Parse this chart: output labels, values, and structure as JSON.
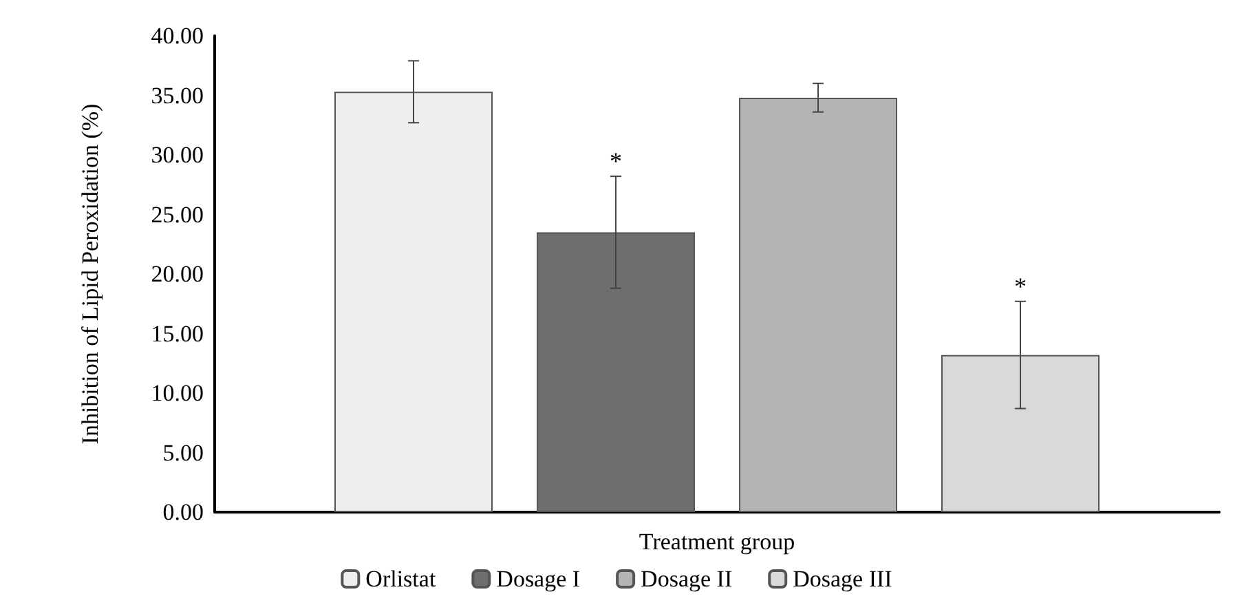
{
  "chart_data": {
    "type": "bar",
    "xlabel": "Treatment group",
    "ylabel": "Inhibition of Lipid Peroxidation (%)",
    "categories": [
      null
    ],
    "series": [
      {
        "name": "Orlistat",
        "color": "#eeeeee",
        "values": [
          35.3
        ],
        "errors": [
          2.6
        ]
      },
      {
        "name": "Dosage I",
        "color": "#6e6e6e",
        "values": [
          23.5
        ],
        "errors": [
          4.7
        ],
        "value_labels": [
          "*"
        ]
      },
      {
        "name": "Dosage II",
        "color": "#b4b4b4",
        "values": [
          34.8
        ],
        "errors": [
          1.2
        ]
      },
      {
        "name": "Dosage III",
        "color": "#d9d9d9",
        "values": [
          13.2
        ],
        "errors": [
          4.5
        ],
        "value_labels": [
          "*"
        ]
      }
    ],
    "ylim": [
      0,
      40
    ],
    "yticks": [
      {
        "value": 0,
        "label": "0.00"
      },
      {
        "value": 5,
        "label": "5.00"
      },
      {
        "value": 10,
        "label": "10.00"
      },
      {
        "value": 15,
        "label": "15.00"
      },
      {
        "value": 20,
        "label": "20.00"
      },
      {
        "value": 25,
        "label": "25.00"
      },
      {
        "value": 30,
        "label": "30.00"
      },
      {
        "value": 35,
        "label": "35.00"
      },
      {
        "value": 40,
        "label": "40.00"
      }
    ],
    "grid": false,
    "legend": "bottom"
  }
}
